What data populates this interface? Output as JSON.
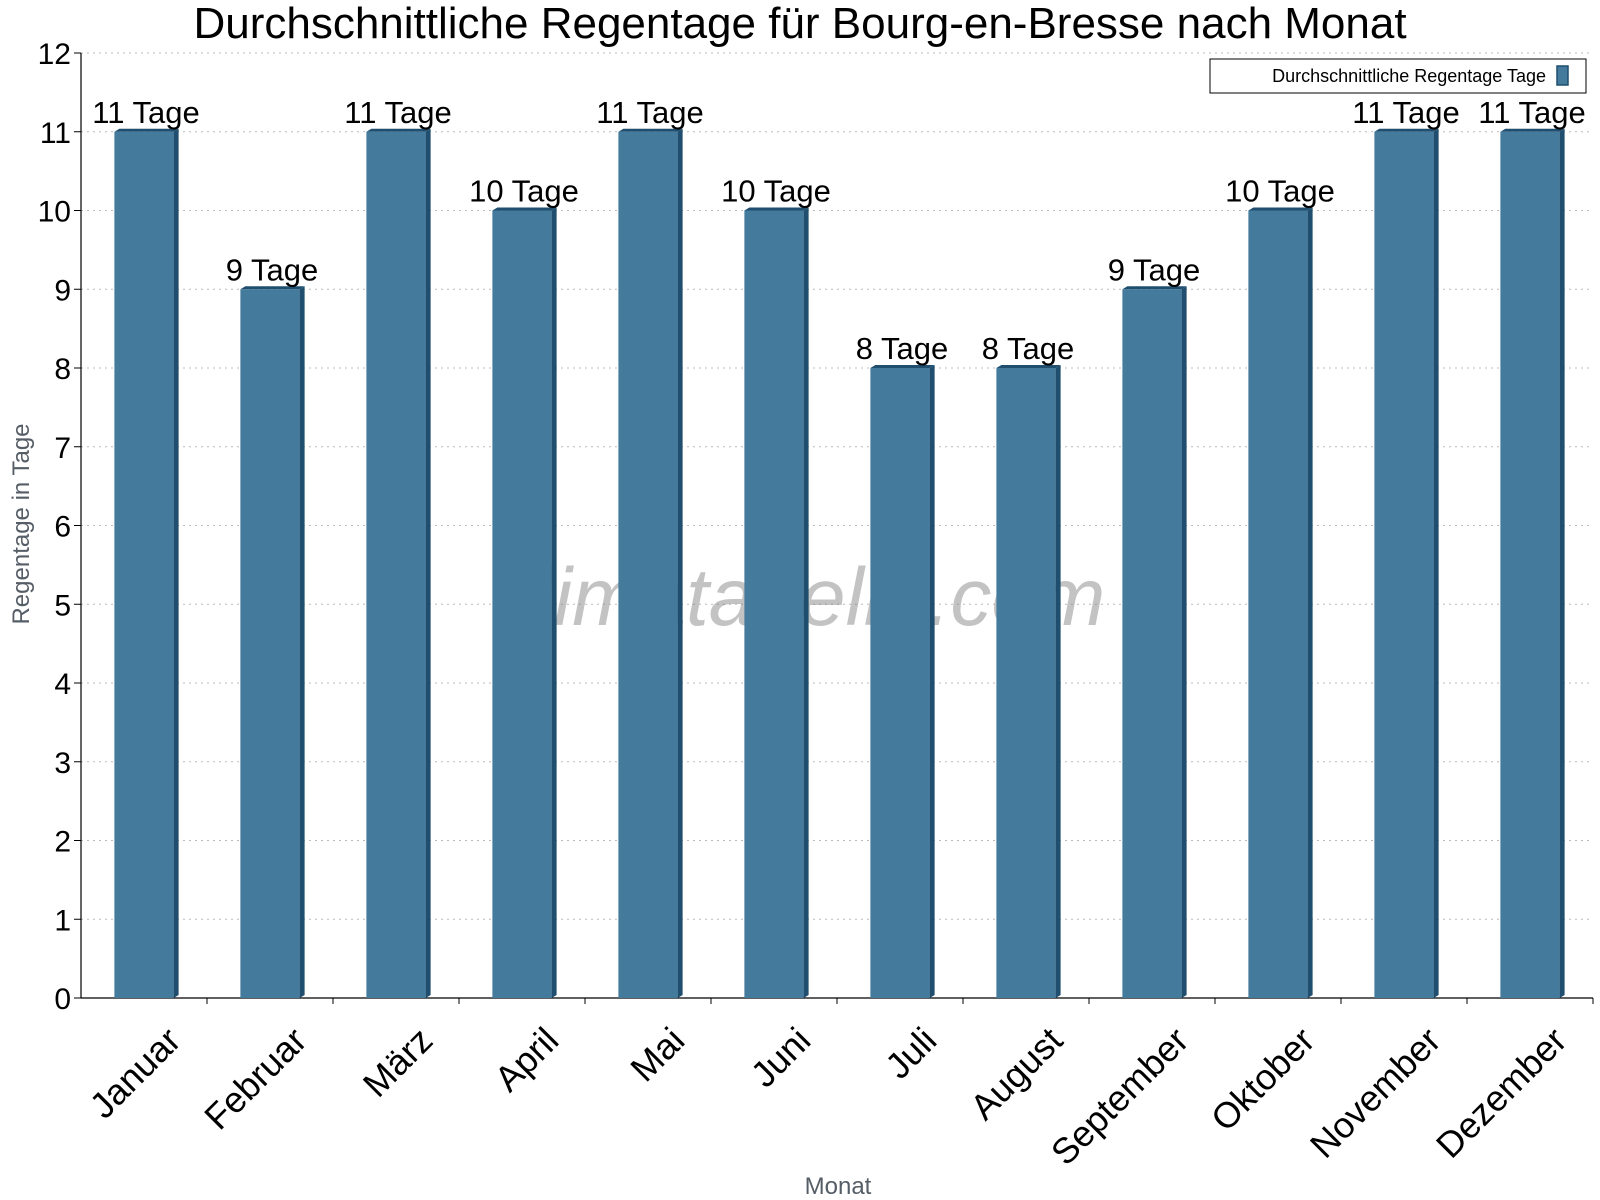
{
  "chart_data": {
    "type": "bar",
    "title": "Durchschnittliche Regentage für Bourg-en-Bresse nach Monat",
    "xlabel": "Monat",
    "ylabel": "Regentage in Tage",
    "categories": [
      "Januar",
      "Februar",
      "März",
      "April",
      "Mai",
      "Juni",
      "Juli",
      "August",
      "September",
      "Oktober",
      "November",
      "Dezember"
    ],
    "series": [
      {
        "name": "Durchschnittliche Regentage Tage",
        "values": [
          11,
          9,
          11,
          10,
          11,
          10,
          8,
          8,
          9,
          10,
          11,
          11
        ],
        "data_labels": [
          "11 Tage",
          "9 Tage",
          "11 Tage",
          "10 Tage",
          "11 Tage",
          "10 Tage",
          "8 Tage",
          "8 Tage",
          "9 Tage",
          "10 Tage",
          "11 Tage",
          "11 Tage"
        ],
        "color": "#447a9c",
        "side_color": "#1f4e6e"
      }
    ],
    "ylim": [
      0,
      12
    ],
    "yticks": [
      "0",
      "1",
      "2",
      "3",
      "4",
      "5",
      "6",
      "7",
      "8",
      "9",
      "10",
      "11",
      "12"
    ],
    "grid": true,
    "legend_position": "top-right",
    "watermark": "klimatabelle.com"
  }
}
